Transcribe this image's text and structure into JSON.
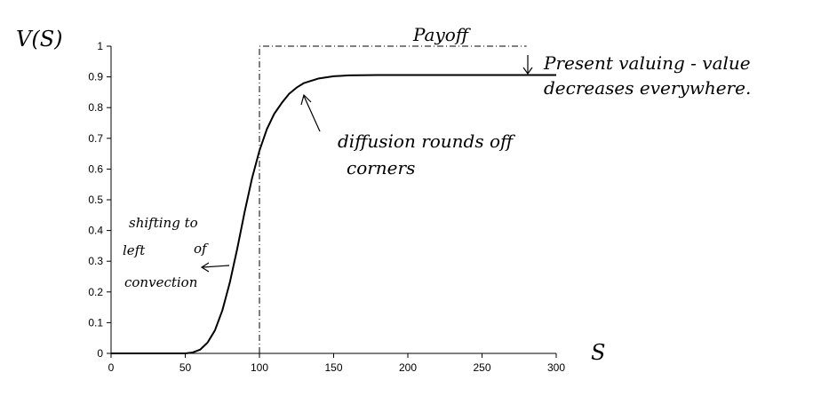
{
  "chart_data": {
    "type": "line",
    "ylabel": "V(S)",
    "xlabel": "S",
    "xlim": [
      0,
      300
    ],
    "ylim": [
      0,
      1
    ],
    "x_ticks": [
      "0",
      "50",
      "100",
      "150",
      "200",
      "250",
      "300"
    ],
    "y_ticks": [
      "0",
      "0.1",
      "0.2",
      "0.3",
      "0.4",
      "0.5",
      "0.6",
      "0.7",
      "0.8",
      "0.9",
      "1"
    ],
    "grid": false,
    "series": [
      {
        "x": [
          0,
          50,
          55,
          60,
          65,
          70,
          75,
          80,
          85,
          90,
          95,
          100,
          105,
          110,
          115,
          120,
          125,
          130,
          140,
          150,
          160,
          180,
          200,
          250,
          300
        ],
        "y": [
          0,
          0,
          0.003,
          0.012,
          0.035,
          0.075,
          0.14,
          0.23,
          0.34,
          0.46,
          0.57,
          0.66,
          0.73,
          0.78,
          0.815,
          0.845,
          0.865,
          0.88,
          0.895,
          0.902,
          0.905,
          0.906,
          0.906,
          0.906,
          0.906
        ]
      },
      {
        "style": "dash-dot",
        "x": [
          100,
          100,
          280
        ],
        "y": [
          0,
          1,
          1
        ]
      }
    ],
    "annotations": [
      "Payoff",
      "Present valuing - value",
      "decreases everywhere.",
      "diffusion rounds off",
      "corners",
      "shifting to",
      "left",
      "of",
      "convection"
    ]
  }
}
